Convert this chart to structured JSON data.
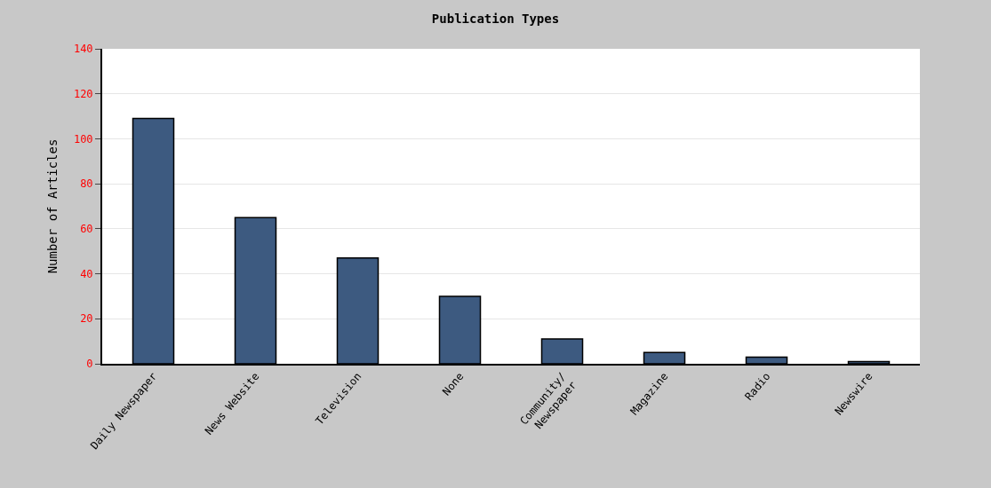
{
  "chart_data": {
    "type": "bar",
    "title": "Publication Types",
    "ylabel": "Number of Articles",
    "categories": [
      "Daily Newspaper",
      "News Website",
      "Television",
      "None",
      "Community/\nNewspaper",
      "Magazine",
      "Radio",
      "Newswire"
    ],
    "values": [
      109,
      65,
      47,
      30,
      11,
      5,
      3,
      1
    ],
    "color": "#3d5a80",
    "ylim": [
      0,
      140
    ],
    "yticks": [
      0,
      20,
      40,
      60,
      80,
      100,
      120,
      140
    ],
    "grid": "y",
    "legend": false
  }
}
